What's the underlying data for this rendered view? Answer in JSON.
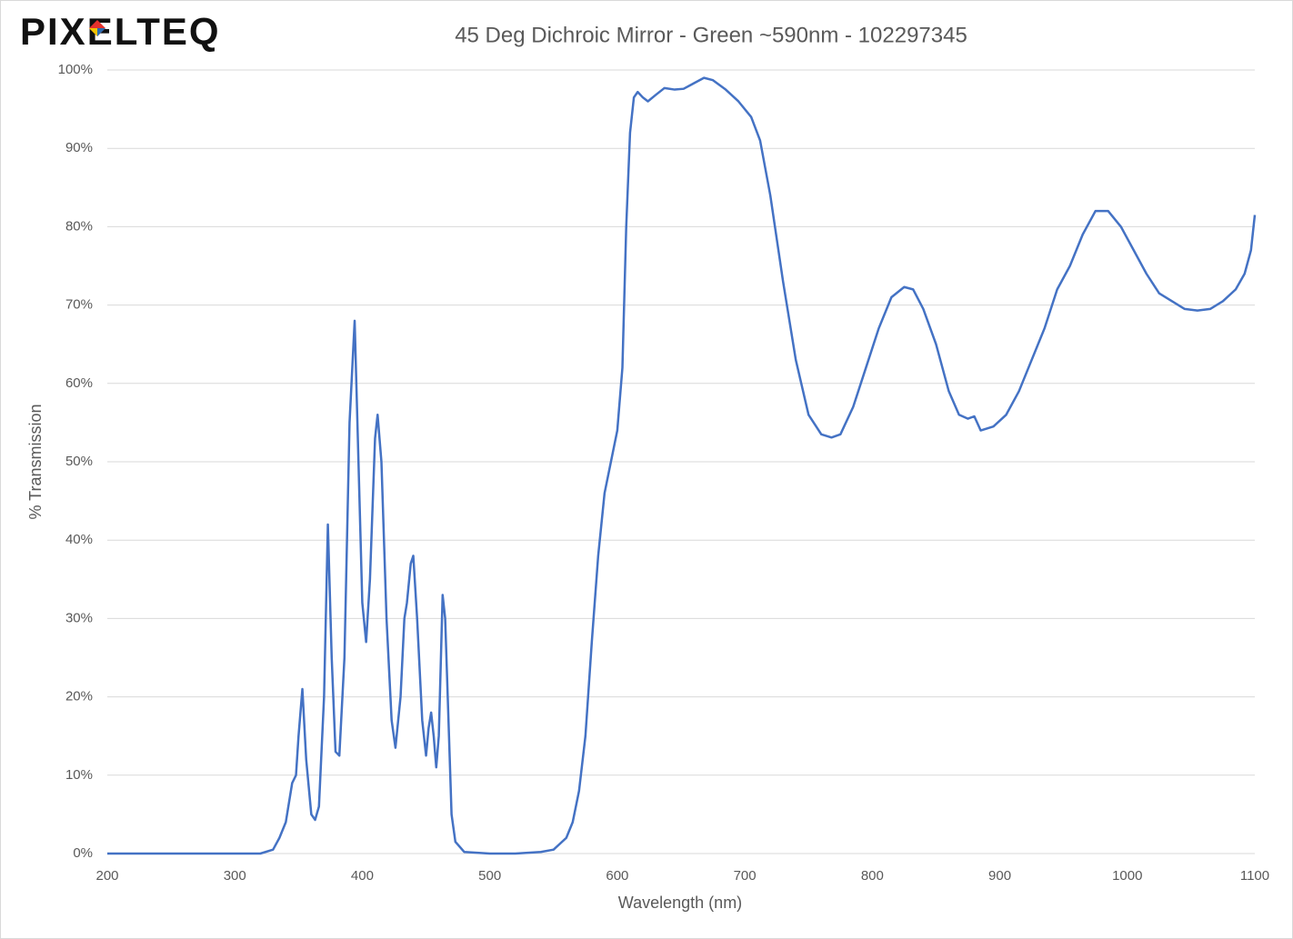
{
  "logo": "PIXELTEQ",
  "chart_data": {
    "type": "line",
    "title": "45 Deg Dichroic Mirror - Green ~590nm - 102297345",
    "x_label": "Wavelength (nm)",
    "y_label": "% Transmission",
    "x": [
      200,
      320,
      330,
      335,
      340,
      345,
      348,
      350,
      353,
      356,
      360,
      363,
      366,
      370,
      373,
      376,
      379,
      382,
      386,
      390,
      394,
      397,
      400,
      403,
      406,
      410,
      412,
      415,
      419,
      423,
      426,
      430,
      433,
      435,
      438,
      440,
      443,
      447,
      450,
      452,
      454,
      456,
      458,
      460,
      463,
      465,
      468,
      470,
      473,
      480,
      500,
      520,
      540,
      550,
      560,
      565,
      570,
      575,
      580,
      585,
      590,
      595,
      600,
      604,
      607,
      610,
      613,
      616,
      620,
      624,
      630,
      637,
      645,
      652,
      660,
      668,
      675,
      685,
      695,
      705,
      712,
      720,
      730,
      740,
      750,
      760,
      768,
      775,
      785,
      795,
      805,
      815,
      825,
      832,
      840,
      850,
      860,
      868,
      875,
      880,
      885,
      895,
      905,
      915,
      925,
      935,
      945,
      955,
      965,
      975,
      985,
      995,
      1005,
      1015,
      1025,
      1035,
      1045,
      1055,
      1065,
      1075,
      1085,
      1092,
      1097,
      1100
    ],
    "series": [
      {
        "color": "#4472c4",
        "values": [
          0,
          0,
          0.5,
          2,
          4,
          9,
          10,
          15,
          21,
          12,
          5,
          4.3,
          6,
          20,
          42,
          25,
          13,
          12.5,
          25,
          55,
          68,
          50,
          32,
          27,
          35,
          53,
          56,
          50,
          30,
          17,
          13.5,
          20,
          30,
          32,
          37,
          38,
          30,
          17,
          12.5,
          16,
          18,
          15,
          11,
          15,
          33,
          30,
          15,
          5,
          1.5,
          0.2,
          0,
          0,
          0.2,
          0.5,
          2,
          4,
          8,
          15,
          27,
          38,
          46,
          50,
          54,
          62,
          80,
          92,
          96.5,
          97.2,
          96.5,
          96,
          96.8,
          97.7,
          97.5,
          97.6,
          98.3,
          99,
          98.7,
          97.5,
          96,
          94,
          91,
          84,
          73,
          63,
          56,
          53.5,
          53.1,
          53.5,
          57,
          62,
          67,
          71,
          72.3,
          72,
          69.5,
          65,
          59,
          56,
          55.5,
          55.8,
          54,
          54.5,
          56,
          59,
          63,
          67,
          72,
          75,
          79,
          82,
          82,
          80,
          77,
          74,
          71.5,
          70.5,
          69.5,
          69.3,
          69.5,
          70.5,
          72,
          74,
          77,
          81.5
        ]
      }
    ],
    "xlim": [
      200,
      1100
    ],
    "xticks": [
      200,
      300,
      400,
      500,
      600,
      700,
      800,
      900,
      1000,
      1100
    ],
    "ylim": [
      0,
      100
    ],
    "yticks": [
      {
        "value": 0,
        "label": "0%"
      },
      {
        "value": 10,
        "label": "10%"
      },
      {
        "value": 20,
        "label": "20%"
      },
      {
        "value": 30,
        "label": "30%"
      },
      {
        "value": 40,
        "label": "40%"
      },
      {
        "value": 50,
        "label": "50%"
      },
      {
        "value": 60,
        "label": "60%"
      },
      {
        "value": 70,
        "label": "70%"
      },
      {
        "value": 80,
        "label": "80%"
      },
      {
        "value": 90,
        "label": "90%"
      },
      {
        "value": 100,
        "label": "100%"
      }
    ],
    "grid": true
  }
}
